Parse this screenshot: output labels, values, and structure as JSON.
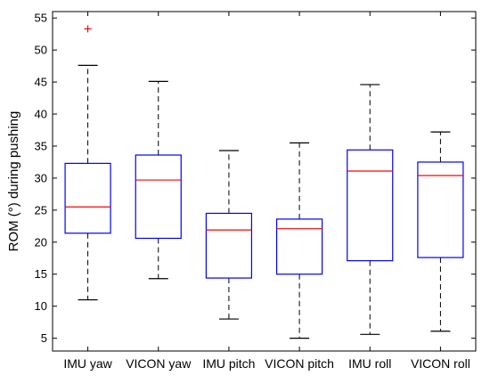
{
  "chart_data": {
    "type": "box",
    "title": "",
    "xlabel": "",
    "ylabel": "ROM (°) during pushing",
    "ylim": [
      3,
      56
    ],
    "yticks": [
      5,
      10,
      15,
      20,
      25,
      30,
      35,
      40,
      45,
      50,
      55
    ],
    "grid": false,
    "categories": [
      "IMU yaw",
      "VICON yaw",
      "IMU pitch",
      "VICON pitch",
      "IMU roll",
      "VICON roll"
    ],
    "boxes": [
      {
        "label": "IMU yaw",
        "whisker_low": 11.0,
        "q1": 21.4,
        "median": 25.5,
        "q3": 32.3,
        "whisker_high": 47.6,
        "outliers": [
          53.3
        ]
      },
      {
        "label": "VICON yaw",
        "whisker_low": 14.3,
        "q1": 20.6,
        "median": 29.7,
        "q3": 33.6,
        "whisker_high": 45.1,
        "outliers": []
      },
      {
        "label": "IMU pitch",
        "whisker_low": 8.0,
        "q1": 14.4,
        "median": 21.9,
        "q3": 24.5,
        "whisker_high": 34.3,
        "outliers": []
      },
      {
        "label": "VICON pitch",
        "whisker_low": 5.0,
        "q1": 15.0,
        "median": 22.1,
        "q3": 23.6,
        "whisker_high": 35.5,
        "outliers": []
      },
      {
        "label": "IMU roll",
        "whisker_low": 5.6,
        "q1": 17.1,
        "median": 31.1,
        "q3": 34.4,
        "whisker_high": 44.6,
        "outliers": []
      },
      {
        "label": "VICON roll",
        "whisker_low": 6.1,
        "q1": 17.6,
        "median": 30.4,
        "q3": 32.5,
        "whisker_high": 37.2,
        "outliers": []
      }
    ],
    "colors": {
      "box": "#0000ff",
      "median": "#ff0000",
      "whisker": "#000000",
      "outlier": "#ff0000",
      "axis": "#000000"
    }
  }
}
